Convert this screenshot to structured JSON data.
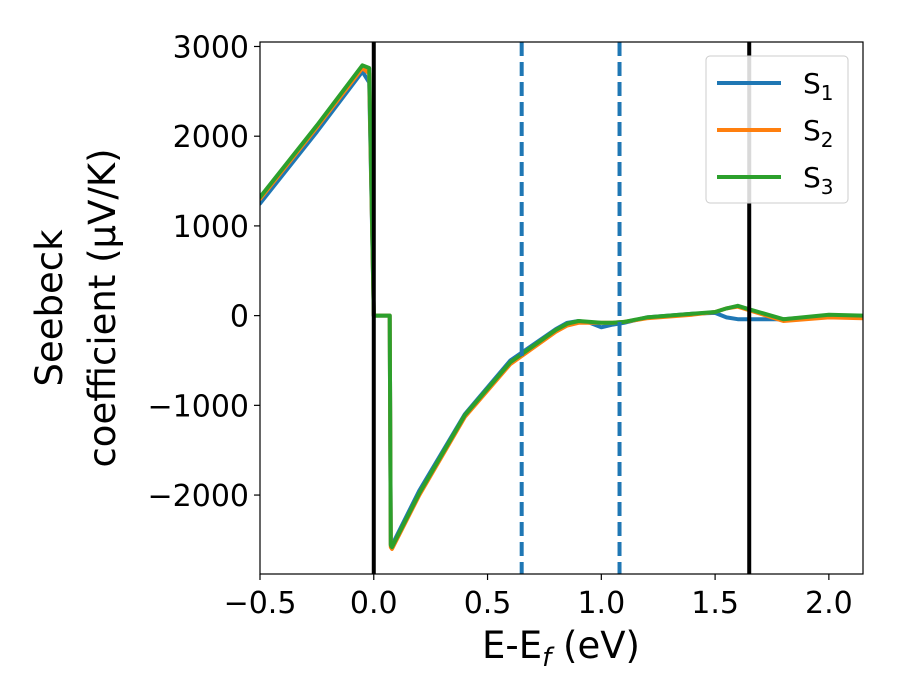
{
  "chart_data": {
    "type": "line",
    "xlabel": "E-E_f (eV)",
    "ylabel_lines": [
      "Seebeck",
      "coefficient  (μV/K)"
    ],
    "xlim": [
      -0.5,
      2.15
    ],
    "ylim": [
      -2880,
      3050
    ],
    "x_ticks": [
      -0.5,
      0.0,
      0.5,
      1.0,
      1.5,
      2.0
    ],
    "x_tick_labels": [
      "−0.5",
      "0.0",
      "0.5",
      "1.0",
      "1.5",
      "2.0"
    ],
    "y_ticks": [
      3000,
      2000,
      1000,
      0,
      -1000,
      -2000
    ],
    "y_tick_labels": [
      "3000",
      "2000",
      "1000",
      "0",
      "−1000",
      "−2000"
    ],
    "legend_position": "top-right",
    "vertical_lines": [
      {
        "x": 0.0,
        "style": "solid",
        "color": "#000000"
      },
      {
        "x": 1.65,
        "style": "solid",
        "color": "#000000"
      },
      {
        "x": 0.65,
        "style": "dashed",
        "color": "#1f77b4"
      },
      {
        "x": 1.08,
        "style": "dashed",
        "color": "#1f77b4"
      }
    ],
    "series": [
      {
        "name": "S1",
        "label_main": "S",
        "label_sub": "1",
        "color": "#1f77b4",
        "x": [
          -0.5,
          -0.25,
          -0.05,
          -0.02,
          0.0,
          0.005,
          0.07,
          0.075,
          0.08,
          0.2,
          0.4,
          0.6,
          0.8,
          0.85,
          0.9,
          0.95,
          1.0,
          1.05,
          1.1,
          1.2,
          1.4,
          1.5,
          1.55,
          1.6,
          1.65,
          1.8,
          2.0,
          2.15
        ],
        "y": [
          1250,
          2050,
          2720,
          2600,
          0,
          0,
          0,
          -2550,
          -2560,
          -1950,
          -1100,
          -500,
          -150,
          -80,
          -60,
          -80,
          -130,
          -100,
          -80,
          -20,
          20,
          30,
          -20,
          -40,
          -40,
          -40,
          0,
          -10
        ]
      },
      {
        "name": "S2",
        "label_main": "S",
        "label_sub": "2",
        "color": "#ff7f0e",
        "x": [
          -0.5,
          -0.25,
          -0.05,
          -0.02,
          0.0,
          0.005,
          0.07,
          0.075,
          0.08,
          0.2,
          0.4,
          0.6,
          0.8,
          0.85,
          0.9,
          0.95,
          1.0,
          1.05,
          1.1,
          1.2,
          1.4,
          1.5,
          1.55,
          1.6,
          1.65,
          1.8,
          2.0,
          2.15
        ],
        "y": [
          1300,
          2100,
          2760,
          2700,
          0,
          0,
          0,
          -2580,
          -2600,
          -2000,
          -1130,
          -540,
          -180,
          -110,
          -80,
          -80,
          -80,
          -80,
          -70,
          -30,
          10,
          40,
          80,
          100,
          60,
          -60,
          -20,
          -30
        ]
      },
      {
        "name": "S3",
        "label_main": "S",
        "label_sub": "3",
        "color": "#2ca02c",
        "x": [
          -0.5,
          -0.25,
          -0.05,
          -0.02,
          0.0,
          0.005,
          0.07,
          0.075,
          0.08,
          0.2,
          0.4,
          0.6,
          0.8,
          0.85,
          0.9,
          0.95,
          1.0,
          1.05,
          1.1,
          1.2,
          1.4,
          1.5,
          1.55,
          1.6,
          1.65,
          1.8,
          2.0,
          2.15
        ],
        "y": [
          1320,
          2120,
          2790,
          2760,
          0,
          0,
          0,
          -2560,
          -2580,
          -1980,
          -1110,
          -520,
          -160,
          -90,
          -60,
          -70,
          -80,
          -80,
          -70,
          -20,
          20,
          40,
          80,
          110,
          70,
          -40,
          10,
          0
        ]
      }
    ]
  }
}
